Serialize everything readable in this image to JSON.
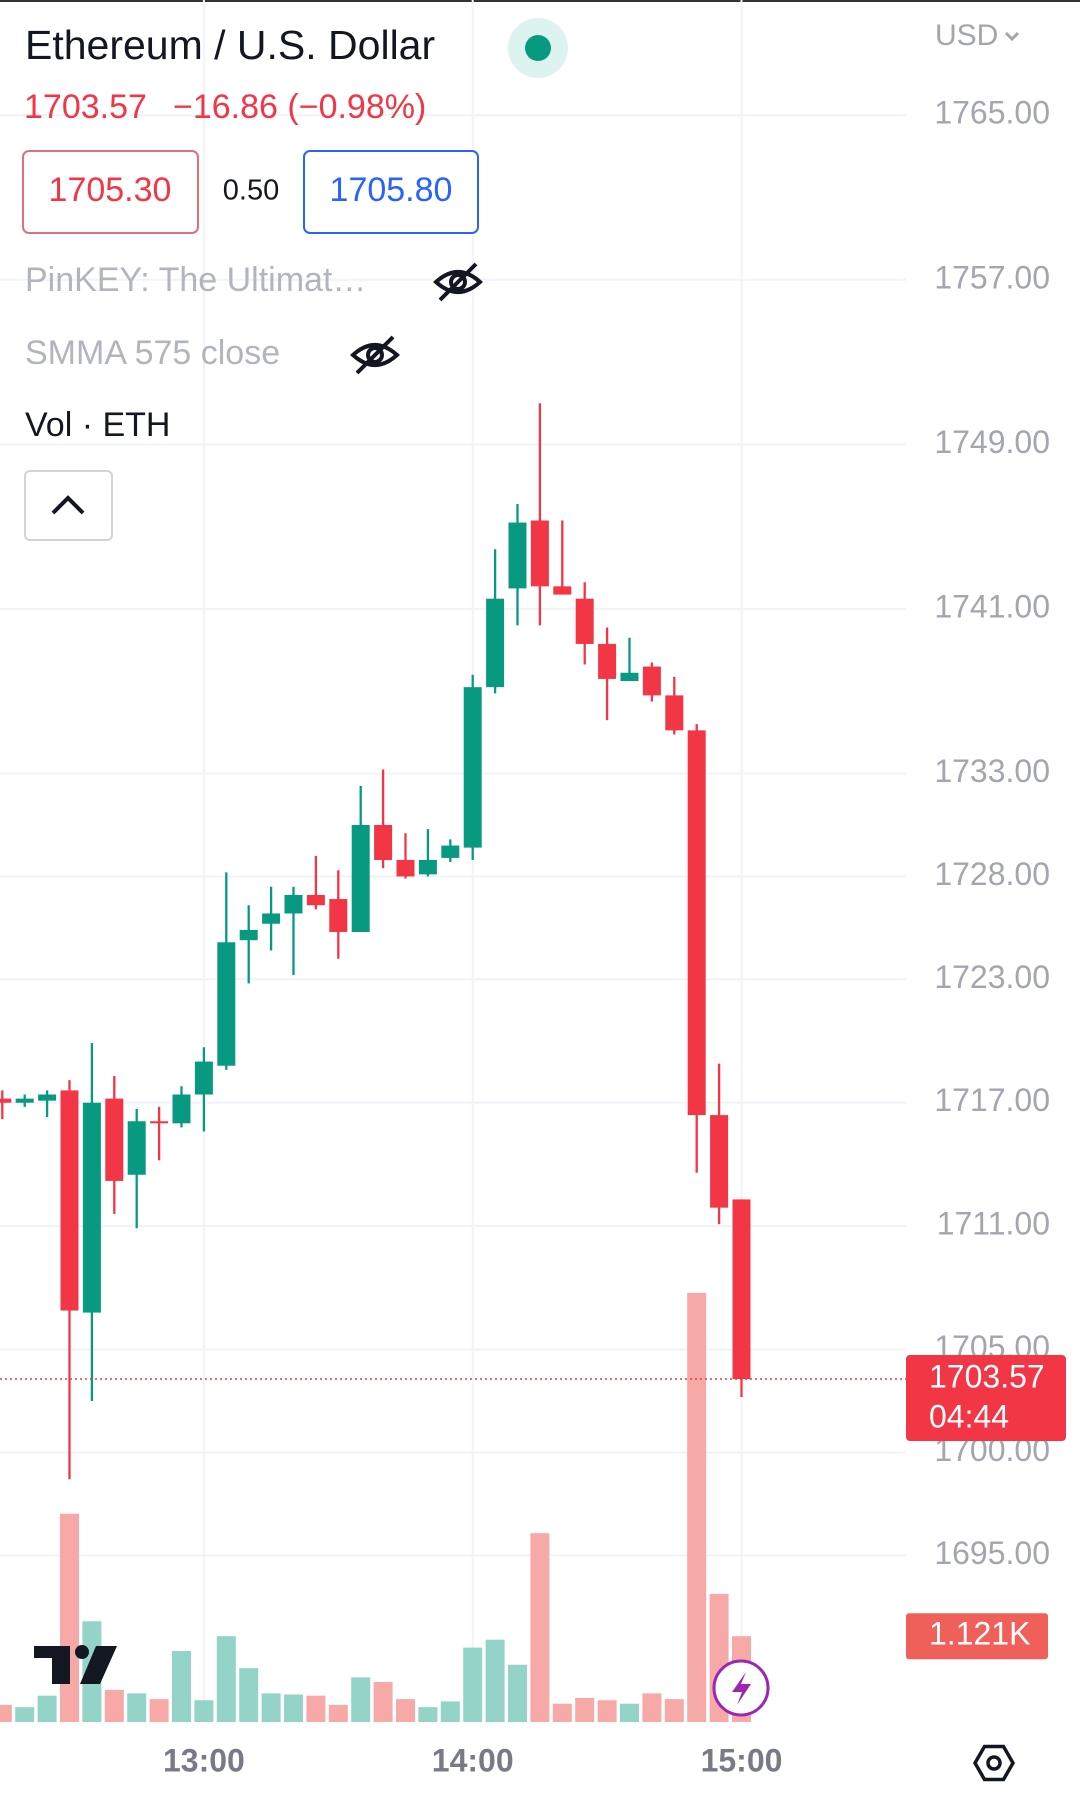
{
  "header": {
    "title": "Ethereum / U.S. Dollar",
    "change": "−16.86 (−0.98%)",
    "bid": "1705.30",
    "spread": "0.50",
    "ask": "1705.80",
    "currency": "USD"
  },
  "indicators": [
    "PinKEY: The Ultimat…",
    "SMMA 575 close",
    "Vol · ETH"
  ],
  "chart_data": {
    "type": "candlestick",
    "categories": [
      null,
      null,
      null,
      null,
      null,
      null,
      null,
      null,
      null,
      "13:00",
      null,
      null,
      null,
      null,
      null,
      null,
      null,
      null,
      null,
      null,
      null,
      "14:00",
      null,
      null,
      null,
      null,
      null,
      null,
      null,
      null,
      null,
      null,
      null,
      "15:00"
    ],
    "open": [
      1717.2,
      1717.0,
      1717.1,
      1717.6,
      1706.8,
      1717.2,
      1713.5,
      1716.1,
      1716.0,
      1717.4,
      1718.8,
      1724.9,
      1725.7,
      1726.2,
      1727.1,
      1726.9,
      1725.3,
      1730.5,
      1728.8,
      1728.1,
      1728.9,
      1729.4,
      1737.2,
      1742.0,
      1745.3,
      1742.1,
      1741.5,
      1739.3,
      1737.5,
      1738.2,
      1736.8,
      1735.1,
      1716.4,
      1712.3
    ],
    "high": [
      1717.6,
      1717.4,
      1717.6,
      1718.1,
      1719.9,
      1718.3,
      1716.7,
      1716.8,
      1717.8,
      1719.7,
      1728.2,
      1726.6,
      1727.5,
      1727.5,
      1729.0,
      1728.3,
      1732.4,
      1733.2,
      1730.1,
      1730.3,
      1729.8,
      1737.8,
      1743.9,
      1746.1,
      1751.0,
      1745.3,
      1742.3,
      1740.1,
      1739.6,
      1738.4,
      1737.7,
      1735.4,
      1718.9,
      1712.3
    ],
    "low": [
      1716.2,
      1716.8,
      1716.3,
      1698.7,
      1702.5,
      1711.6,
      1710.9,
      1714.2,
      1715.8,
      1715.6,
      1718.6,
      1722.8,
      1724.4,
      1723.2,
      1726.4,
      1724.0,
      1725.3,
      1728.4,
      1727.9,
      1728.0,
      1728.7,
      1728.8,
      1736.9,
      1740.2,
      1740.2,
      1741.7,
      1738.3,
      1735.6,
      1737.5,
      1736.5,
      1734.9,
      1713.6,
      1711.1,
      1702.7
    ],
    "close": [
      1717.0,
      1717.2,
      1717.4,
      1706.9,
      1717.0,
      1713.2,
      1716.1,
      1716.0,
      1717.4,
      1719.0,
      1724.8,
      1725.4,
      1726.2,
      1727.1,
      1726.6,
      1725.3,
      1730.5,
      1728.8,
      1728.0,
      1728.8,
      1729.5,
      1737.2,
      1741.5,
      1745.2,
      1742.1,
      1741.7,
      1739.3,
      1737.6,
      1737.9,
      1736.8,
      1735.1,
      1716.4,
      1711.9,
      1703.57
    ],
    "up_color": "#089981",
    "down_color": "#f23645",
    "volume": {
      "values": [
        224,
        194,
        344,
        2721,
        1316,
        419,
        374,
        299,
        927,
        284,
        1121,
        703,
        374,
        359,
        344,
        224,
        583,
        523,
        299,
        194,
        269,
        972,
        1076,
        748,
        2467,
        239,
        314,
        284,
        239,
        374,
        299,
        5606,
        1674,
        1121
      ],
      "value_labels": [
        null,
        null,
        null,
        null,
        null,
        null,
        null,
        null,
        null,
        null,
        null,
        null,
        null,
        null,
        null,
        null,
        null,
        null,
        null,
        null,
        null,
        null,
        null,
        null,
        null,
        null,
        null,
        null,
        null,
        null,
        null,
        null,
        null,
        "1.121K"
      ],
      "up_color": "#94d3c8",
      "down_color": "#f7a9a8",
      "label_color": "#f0605a",
      "vlim": [
        0,
        22500
      ]
    },
    "ylim": [
      1686.9,
      1770.6
    ],
    "yticks": [
      {
        "value": 1765,
        "label": "1765.00"
      },
      {
        "value": 1757,
        "label": "1757.00"
      },
      {
        "value": 1749,
        "label": "1749.00"
      },
      {
        "value": 1741,
        "label": "1741.00"
      },
      {
        "value": 1733,
        "label": "1733.00"
      },
      {
        "value": 1728,
        "label": "1728.00"
      },
      {
        "value": 1723,
        "label": "1723.00"
      },
      {
        "value": 1717,
        "label": "1717.00"
      },
      {
        "value": 1711,
        "label": "1711.00"
      },
      {
        "value": 1705,
        "label": "1705.00"
      },
      {
        "value": 1700,
        "label": "1700.00"
      },
      {
        "value": 1695,
        "label": "1695.00"
      }
    ],
    "grid": true,
    "countdown": "04:44"
  }
}
